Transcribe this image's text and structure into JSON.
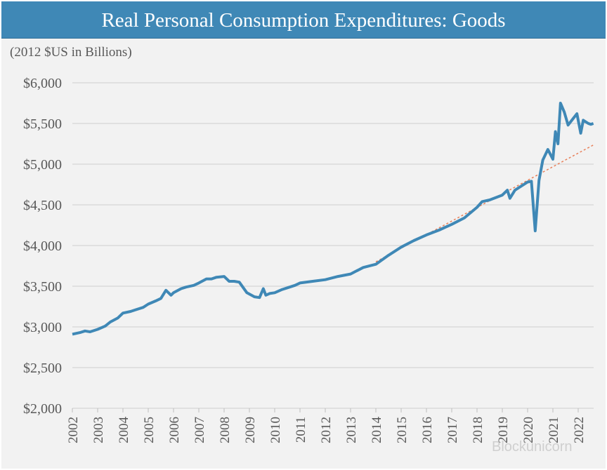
{
  "chart_data": {
    "type": "line",
    "title": "Real Personal Consumption Expenditures: Goods",
    "subtitle": "(2012 $US in Billions)",
    "xlabel": "",
    "ylabel": "",
    "ylim": [
      2000,
      6000
    ],
    "xlim": [
      2002,
      2022.6
    ],
    "y_ticks": [
      "$2,000",
      "$2,500",
      "$3,000",
      "$3,500",
      "$4,000",
      "$4,500",
      "$5,000",
      "$5,500",
      "$6,000"
    ],
    "y_tick_values": [
      2000,
      2500,
      3000,
      3500,
      4000,
      4500,
      5000,
      5500,
      6000
    ],
    "x_ticks": [
      "2002",
      "2003",
      "2004",
      "2005",
      "2006",
      "2007",
      "2008",
      "2009",
      "2010",
      "2011",
      "2012",
      "2013",
      "2014",
      "2015",
      "2016",
      "2017",
      "2018",
      "2019",
      "2020",
      "2021",
      "2022"
    ],
    "grid": "horizontal",
    "legend": "none",
    "series": [
      {
        "color": "#3f88b6",
        "style": "solid",
        "x": [
          2002.0,
          2002.3,
          2002.5,
          2002.7,
          2003.0,
          2003.3,
          2003.5,
          2003.8,
          2004.0,
          2004.3,
          2004.5,
          2004.8,
          2005.0,
          2005.3,
          2005.5,
          2005.7,
          2005.9,
          2006.0,
          2006.3,
          2006.5,
          2006.8,
          2007.0,
          2007.3,
          2007.5,
          2007.7,
          2008.0,
          2008.2,
          2008.4,
          2008.6,
          2008.9,
          2009.2,
          2009.4,
          2009.55,
          2009.65,
          2009.8,
          2010.0,
          2010.3,
          2010.5,
          2010.8,
          2011.0,
          2011.5,
          2012.0,
          2012.5,
          2013.0,
          2013.5,
          2014.0,
          2014.5,
          2015.0,
          2015.5,
          2016.0,
          2016.5,
          2017.0,
          2017.5,
          2018.0,
          2018.2,
          2018.5,
          2019.0,
          2019.2,
          2019.3,
          2019.5,
          2020.0,
          2020.15,
          2020.3,
          2020.45,
          2020.6,
          2020.8,
          2021.0,
          2021.1,
          2021.2,
          2021.3,
          2021.45,
          2021.6,
          2021.8,
          2021.95,
          2022.1,
          2022.2,
          2022.4,
          2022.5,
          2022.6
        ],
        "values": [
          2910,
          2930,
          2950,
          2940,
          2970,
          3010,
          3060,
          3110,
          3170,
          3190,
          3210,
          3240,
          3280,
          3320,
          3350,
          3450,
          3390,
          3420,
          3470,
          3490,
          3510,
          3540,
          3590,
          3590,
          3610,
          3620,
          3560,
          3560,
          3550,
          3420,
          3370,
          3360,
          3470,
          3390,
          3410,
          3420,
          3460,
          3480,
          3510,
          3540,
          3560,
          3580,
          3620,
          3650,
          3730,
          3770,
          3880,
          3980,
          4060,
          4130,
          4190,
          4260,
          4340,
          4470,
          4540,
          4560,
          4620,
          4680,
          4580,
          4680,
          4780,
          4790,
          4180,
          4800,
          5050,
          5180,
          5060,
          5400,
          5250,
          5750,
          5640,
          5480,
          5560,
          5620,
          5380,
          5540,
          5500,
          5490,
          5500
        ]
      },
      {
        "color": "#e8805a",
        "style": "dotted",
        "x": [
          2014.0,
          2022.6
        ],
        "values": [
          3800,
          5235
        ]
      }
    ]
  },
  "watermark": "Blockunicorn"
}
